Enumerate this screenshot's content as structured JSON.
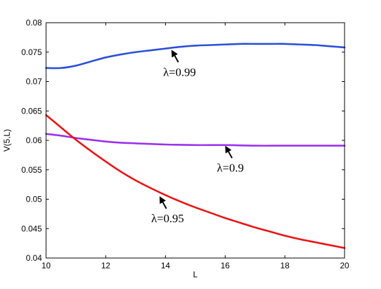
{
  "chart_data": {
    "type": "line",
    "title": "",
    "xlabel": "L",
    "ylabel": "V(5,L)",
    "xlim": [
      10,
      20
    ],
    "ylim": [
      0.04,
      0.08
    ],
    "x_ticks": [
      "10",
      "12",
      "14",
      "16",
      "18",
      "20"
    ],
    "y_ticks": [
      "0.04",
      "0.045",
      "0.05",
      "0.055",
      "0.06",
      "0.065",
      "0.07",
      "0.075",
      "0.08"
    ],
    "grid": false,
    "legend": "none",
    "series": [
      {
        "color": "#2a4fd8",
        "x": [
          10,
          10.5,
          11,
          11.5,
          12,
          12.5,
          13,
          13.5,
          14,
          14.5,
          15,
          15.5,
          16,
          16.5,
          17,
          17.5,
          18,
          18.5,
          19,
          19.5,
          20
        ],
        "y": [
          0.0723,
          0.0723,
          0.0727,
          0.0734,
          0.0741,
          0.0746,
          0.075,
          0.0753,
          0.0756,
          0.0759,
          0.0761,
          0.0762,
          0.0763,
          0.0764,
          0.0764,
          0.0764,
          0.0764,
          0.0763,
          0.0762,
          0.076,
          0.0758
        ]
      },
      {
        "color": "#9b30f0",
        "x": [
          10,
          10.5,
          11,
          11.5,
          12,
          12.5,
          13,
          14,
          15,
          16,
          17,
          18,
          19,
          20
        ],
        "y": [
          0.0611,
          0.0608,
          0.0604,
          0.0601,
          0.0598,
          0.0596,
          0.0595,
          0.0593,
          0.0592,
          0.0592,
          0.0591,
          0.0591,
          0.0591,
          0.0591
        ]
      },
      {
        "color": "#ee1111",
        "x": [
          10,
          10.5,
          11,
          11.5,
          12,
          12.5,
          13,
          13.5,
          14,
          14.5,
          15,
          15.5,
          16,
          16.5,
          17,
          17.5,
          18,
          18.5,
          19,
          19.5,
          20
        ],
        "y": [
          0.0643,
          0.0622,
          0.0601,
          0.0582,
          0.0564,
          0.0547,
          0.0532,
          0.0519,
          0.0507,
          0.0496,
          0.0486,
          0.0477,
          0.0468,
          0.046,
          0.0452,
          0.0445,
          0.0438,
          0.0432,
          0.0427,
          0.0422,
          0.0417
        ]
      }
    ],
    "annotations": [
      {
        "text": "λ=0.99",
        "point": [
          14.2,
          0.0754
        ],
        "color": "#000000"
      },
      {
        "text": "λ=0.9",
        "point": [
          16.0,
          0.0591
        ],
        "color": "#000000"
      },
      {
        "text": "λ=0.95",
        "point": [
          13.8,
          0.0505
        ],
        "color": "#000000"
      }
    ]
  }
}
